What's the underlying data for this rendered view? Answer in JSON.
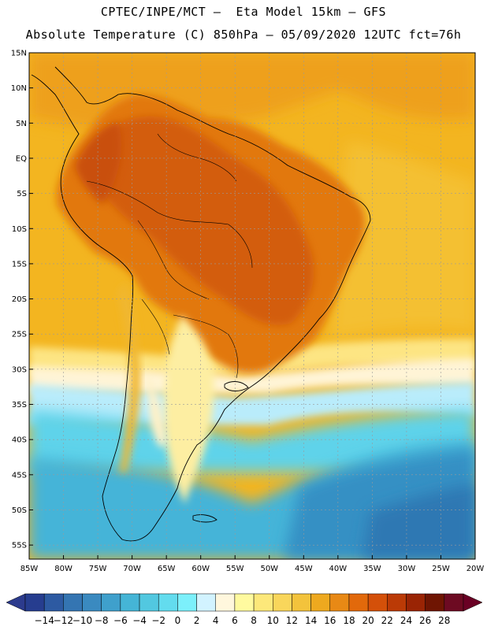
{
  "header": {
    "line1": "CPTEC/INPE/MCT –  Eta Model 15km – GFS",
    "line2": "Absolute Temperature (C) 850hPa – 05/09/2020 12UTC fct=76h"
  },
  "map": {
    "lat_labels": [
      "15N",
      "10N",
      "5N",
      "EQ",
      "5S",
      "10S",
      "15S",
      "20S",
      "25S",
      "30S",
      "35S",
      "40S",
      "45S",
      "50S",
      "55S"
    ],
    "lon_labels": [
      "85W",
      "80W",
      "75W",
      "70W",
      "65W",
      "60W",
      "55W",
      "50W",
      "45W",
      "40W",
      "35W",
      "30W",
      "25W",
      "20W"
    ],
    "lat_range": [
      15,
      -57
    ],
    "lon_range": [
      -85,
      -20
    ]
  },
  "colorbar": {
    "labels": [
      "-14",
      "-12",
      "-10",
      "-8",
      "-6",
      "-4",
      "-2",
      "0",
      "2",
      "4",
      "6",
      "8",
      "10",
      "12",
      "14",
      "16",
      "18",
      "20",
      "22",
      "24",
      "26",
      "28"
    ],
    "colors": [
      "#263d8f",
      "#2d5aa2",
      "#3475b2",
      "#3a8ac0",
      "#3fa0cc",
      "#45b5d6",
      "#52c8e0",
      "#63dcee",
      "#7cf0fb",
      "#d2f3ff",
      "#fff7dd",
      "#fffa9f",
      "#fde87a",
      "#f9d65b",
      "#f3c33c",
      "#eea91f",
      "#e88915",
      "#e2690b",
      "#d45009",
      "#bb3a06",
      "#9a2404",
      "#6f1502",
      "#6d0a22"
    ],
    "left_arrow_color": "#2c3b8d",
    "right_arrow_color": "#6a0024"
  },
  "colors": {
    "ocean_warm": "#f1b11e",
    "land_hot": "#d96b0e",
    "land_very_hot": "#c9550b",
    "cold_ocean": "#3c9fd0"
  }
}
